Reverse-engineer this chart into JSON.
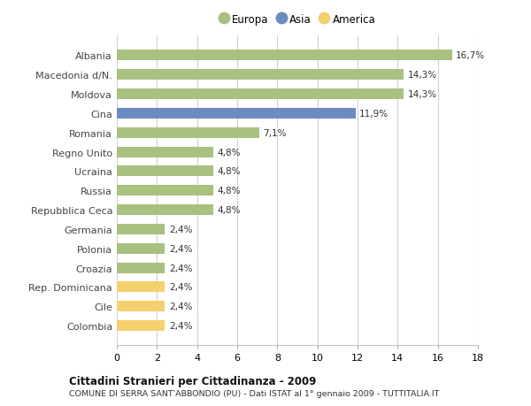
{
  "categories": [
    "Albania",
    "Macedonia d/N.",
    "Moldova",
    "Cina",
    "Romania",
    "Regno Unito",
    "Ucraina",
    "Russia",
    "Repubblica Ceca",
    "Germania",
    "Polonia",
    "Croazia",
    "Rep. Dominicana",
    "Cile",
    "Colombia"
  ],
  "values": [
    16.7,
    14.3,
    14.3,
    11.9,
    7.1,
    4.8,
    4.8,
    4.8,
    4.8,
    2.4,
    2.4,
    2.4,
    2.4,
    2.4,
    2.4
  ],
  "bar_colors": [
    "#a8c080",
    "#a8c080",
    "#a8c080",
    "#6b8cbf",
    "#a8c080",
    "#a8c080",
    "#a8c080",
    "#a8c080",
    "#a8c080",
    "#a8c080",
    "#a8c080",
    "#a8c080",
    "#f5d06e",
    "#f5d06e",
    "#f5d06e"
  ],
  "labels": [
    "16,7%",
    "14,3%",
    "14,3%",
    "11,9%",
    "7,1%",
    "4,8%",
    "4,8%",
    "4,8%",
    "4,8%",
    "2,4%",
    "2,4%",
    "2,4%",
    "2,4%",
    "2,4%",
    "2,4%"
  ],
  "xlim": [
    0,
    18
  ],
  "xticks": [
    0,
    2,
    4,
    6,
    8,
    10,
    12,
    14,
    16,
    18
  ],
  "legend_labels": [
    "Europa",
    "Asia",
    "America"
  ],
  "legend_colors": [
    "#a8c080",
    "#6b8cbf",
    "#f5d06e"
  ],
  "title": "Cittadini Stranieri per Cittadinanza - 2009",
  "subtitle": "COMUNE DI SERRA SANT'ABBONDIO (PU) - Dati ISTAT al 1° gennaio 2009 - TUTTITALIA.IT",
  "background_color": "#ffffff",
  "grid_color": "#d0d0d0",
  "bar_height": 0.55,
  "label_fontsize": 7.5,
  "ytick_fontsize": 8,
  "xtick_fontsize": 8
}
